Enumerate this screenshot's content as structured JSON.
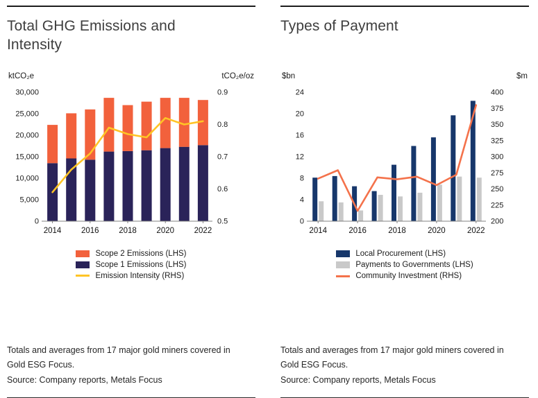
{
  "panels": {
    "ghg": {
      "title": "Total GHG Emissions and Intensity",
      "footnote": "Totals and averages from 17 major gold miners covered in Gold ESG Focus.",
      "source": "Source: Company reports, Metals Focus"
    },
    "payments": {
      "title": "Types of Payment",
      "footnote": "Totals and averages from 17 major gold miners covered in Gold ESG Focus.",
      "source": "Source: Company reports, Metals Focus"
    }
  },
  "chart_data": [
    {
      "id": "ghg",
      "type": "bar",
      "bar_mode": "stack",
      "title": "Total GHG Emissions and Intensity",
      "categories": [
        "2014",
        "2015",
        "2016",
        "2017",
        "2018",
        "2019",
        "2020",
        "2021",
        "2022"
      ],
      "x_ticks": [
        {
          "i": 0,
          "label": "2014"
        },
        {
          "i": 2,
          "label": "2016"
        },
        {
          "i": 4,
          "label": "2018"
        },
        {
          "i": 6,
          "label": "2020"
        },
        {
          "i": 8,
          "label": "2022"
        }
      ],
      "left_axis": {
        "unit": "ktCO₂e",
        "min": 0,
        "max": 30000,
        "ticks": [
          {
            "v": 0,
            "label": "0"
          },
          {
            "v": 5000,
            "label": "5,000"
          },
          {
            "v": 10000,
            "label": "10,000"
          },
          {
            "v": 15000,
            "label": "15,000"
          },
          {
            "v": 20000,
            "label": "20,000"
          },
          {
            "v": 25000,
            "label": "25,000"
          },
          {
            "v": 30000,
            "label": "30,000"
          }
        ]
      },
      "right_axis": {
        "unit": "tCO₂e/oz",
        "min": 0.5,
        "max": 0.9,
        "ticks": [
          {
            "v": 0.5,
            "label": "0.5"
          },
          {
            "v": 0.6,
            "label": "0.6"
          },
          {
            "v": 0.7,
            "label": "0.7"
          },
          {
            "v": 0.8,
            "label": "0.8"
          },
          {
            "v": 0.9,
            "label": "0.9"
          }
        ]
      },
      "series": [
        {
          "name": "Scope 1 Emissions (LHS)",
          "kind": "bar",
          "color": "#2A2359",
          "values": [
            13500,
            14600,
            14300,
            16200,
            16300,
            16500,
            17000,
            17300,
            17700
          ]
        },
        {
          "name": "Scope 2 Emissions (LHS)",
          "kind": "bar",
          "color": "#F2613C",
          "values": [
            8900,
            10500,
            11700,
            12500,
            10700,
            11300,
            11700,
            11400,
            10500
          ]
        },
        {
          "name": "Emission Intensity (RHS)",
          "kind": "line",
          "axis": "right",
          "color": "#FFC425",
          "values": [
            0.59,
            0.66,
            0.71,
            0.79,
            0.77,
            0.76,
            0.82,
            0.8,
            0.81
          ]
        }
      ],
      "legend": [
        {
          "label": "Scope 2 Emissions (LHS)",
          "color": "#F2613C",
          "marker": "rect"
        },
        {
          "label": "Scope 1 Emissions (LHS)",
          "color": "#2A2359",
          "marker": "rect"
        },
        {
          "label": "Emission Intensity (RHS)",
          "color": "#FFC425",
          "marker": "line"
        }
      ]
    },
    {
      "id": "payments",
      "type": "bar",
      "bar_mode": "group",
      "title": "Types of Payment",
      "categories": [
        "2014",
        "2015",
        "2016",
        "2017",
        "2018",
        "2019",
        "2020",
        "2021",
        "2022"
      ],
      "x_ticks": [
        {
          "i": 0,
          "label": "2014"
        },
        {
          "i": 2,
          "label": "2016"
        },
        {
          "i": 4,
          "label": "2018"
        },
        {
          "i": 6,
          "label": "2020"
        },
        {
          "i": 8,
          "label": "2022"
        }
      ],
      "left_axis": {
        "unit": "$bn",
        "min": 0,
        "max": 24,
        "ticks": [
          {
            "v": 0,
            "label": "0"
          },
          {
            "v": 4,
            "label": "4"
          },
          {
            "v": 8,
            "label": "8"
          },
          {
            "v": 12,
            "label": "12"
          },
          {
            "v": 16,
            "label": "16"
          },
          {
            "v": 20,
            "label": "20"
          },
          {
            "v": 24,
            "label": "24"
          }
        ]
      },
      "right_axis": {
        "unit": "$m",
        "min": 200,
        "max": 400,
        "ticks": [
          {
            "v": 200,
            "label": "200"
          },
          {
            "v": 225,
            "label": "225"
          },
          {
            "v": 250,
            "label": "250"
          },
          {
            "v": 275,
            "label": "275"
          },
          {
            "v": 300,
            "label": "300"
          },
          {
            "v": 325,
            "label": "325"
          },
          {
            "v": 350,
            "label": "350"
          },
          {
            "v": 375,
            "label": "375"
          },
          {
            "v": 400,
            "label": "400"
          }
        ]
      },
      "series": [
        {
          "name": "Local Procurement (LHS)",
          "kind": "bar",
          "color": "#17376B",
          "values": [
            8.1,
            8.4,
            6.5,
            5.6,
            10.5,
            14.0,
            15.6,
            19.7,
            22.4
          ]
        },
        {
          "name": "Payments to Governments (LHS)",
          "kind": "bar",
          "color": "#C9C9C9",
          "values": [
            3.7,
            3.5,
            2.0,
            4.9,
            4.6,
            5.3,
            6.8,
            8.3,
            8.1
          ]
        },
        {
          "name": "Community Investment (RHS)",
          "kind": "line",
          "axis": "right",
          "color": "#F4724B",
          "values": [
            266,
            279,
            216,
            268,
            265,
            269,
            256,
            272,
            380
          ]
        }
      ],
      "legend": [
        {
          "label": "Local Procurement (LHS)",
          "color": "#17376B",
          "marker": "rect"
        },
        {
          "label": "Payments to Governments (LHS)",
          "color": "#C9C9C9",
          "marker": "rect"
        },
        {
          "label": "Community Investment (RHS)",
          "color": "#F4724B",
          "marker": "line"
        }
      ]
    }
  ]
}
